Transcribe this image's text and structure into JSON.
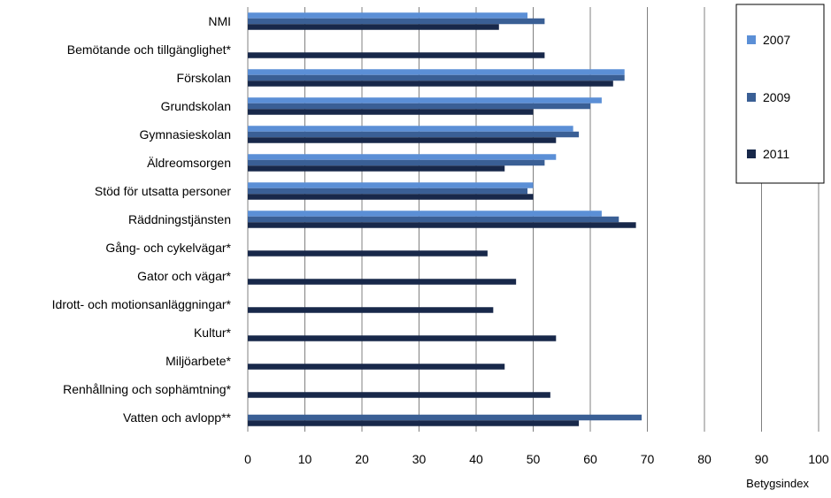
{
  "chart_data": {
    "type": "bar",
    "orientation": "horizontal",
    "categories": [
      "NMI",
      "Bemötande och tillgänglighet*",
      "Förskolan",
      "Grundskolan",
      "Gymnasieskolan",
      "Äldreomsorgen",
      "Stöd för utsatta  personer",
      "Räddningstjänsten",
      "Gång- och cykelvägar*",
      "Gator och vägar*",
      "Idrott- och motionsanläggningar*",
      "Kultur*",
      "Miljöarbete*",
      "Renhållning och sophämtning*",
      "Vatten och avlopp**"
    ],
    "series": [
      {
        "name": "2007",
        "color": "#5b8fd6",
        "values": [
          49,
          null,
          66,
          62,
          57,
          54,
          50,
          62,
          null,
          null,
          null,
          null,
          null,
          null,
          null
        ]
      },
      {
        "name": "2009",
        "color": "#3a5f95",
        "values": [
          52,
          null,
          66,
          60,
          58,
          52,
          49,
          65,
          null,
          null,
          null,
          null,
          null,
          null,
          69
        ]
      },
      {
        "name": "2011",
        "color": "#18284a",
        "values": [
          44,
          52,
          64,
          50,
          54,
          45,
          50,
          68,
          42,
          47,
          43,
          54,
          45,
          53,
          58
        ]
      }
    ],
    "xlabel": "Betygsindex",
    "xlim": [
      0,
      100
    ],
    "xticks": [
      0,
      10,
      20,
      30,
      40,
      50,
      60,
      70,
      80,
      90,
      100
    ],
    "grid": "vertical",
    "legend_position": "top-right"
  }
}
